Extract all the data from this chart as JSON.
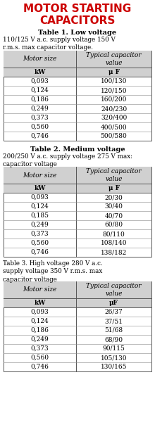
{
  "title_line1": "MOTOR STARTING",
  "title_line2": "CAPACITORS",
  "title_color": "#CC0000",
  "bg_color": "#FFFFFF",
  "table1_title": "Table 1. Low voltage",
  "table1_subtitle": "110/125 V a.c. supply voltage 150 V\nr.m.s. max capacitor voltage.",
  "table2_title": "Table 2. Medium voltage",
  "table2_subtitle": "200/250 V a.c. supply voltage 275 V max:\ncapacitor voltage",
  "table3_title": "Table 3. High voltage 280 V a.c.\nsupply voltage 350 V r.m.s. max\ncapacitor voltage",
  "col_headers": [
    "Motor size",
    "Typical capacitor\nvalue"
  ],
  "col_units_t1": [
    "kW",
    "μ F"
  ],
  "col_units_t2": [
    "kW",
    "μ F"
  ],
  "col_units_t3": [
    "kW",
    "μF"
  ],
  "table1_data": [
    [
      "0,093",
      "100/130"
    ],
    [
      "0,124",
      "120/150"
    ],
    [
      "0,186",
      "160/200"
    ],
    [
      "0,249",
      "240/230"
    ],
    [
      "0,373",
      "320/400"
    ],
    [
      "0,560",
      "400/500"
    ],
    [
      "0,746",
      "500/580"
    ]
  ],
  "table2_data": [
    [
      "0,093",
      "20/30"
    ],
    [
      "0,124",
      "30/40"
    ],
    [
      "0,185",
      "40/70"
    ],
    [
      "0,249",
      "60/80"
    ],
    [
      "0,373",
      "80/110"
    ],
    [
      "0,560",
      "108/140"
    ],
    [
      "0,746",
      "138/182"
    ]
  ],
  "table3_data": [
    [
      "0,093",
      "26/37"
    ],
    [
      "0,124",
      "37/51"
    ],
    [
      "0,186",
      "51/68"
    ],
    [
      "0,249",
      "68/90"
    ],
    [
      "0,373",
      "90/115"
    ],
    [
      "0,560",
      "105/130"
    ],
    [
      "0,746",
      "130/165"
    ]
  ]
}
